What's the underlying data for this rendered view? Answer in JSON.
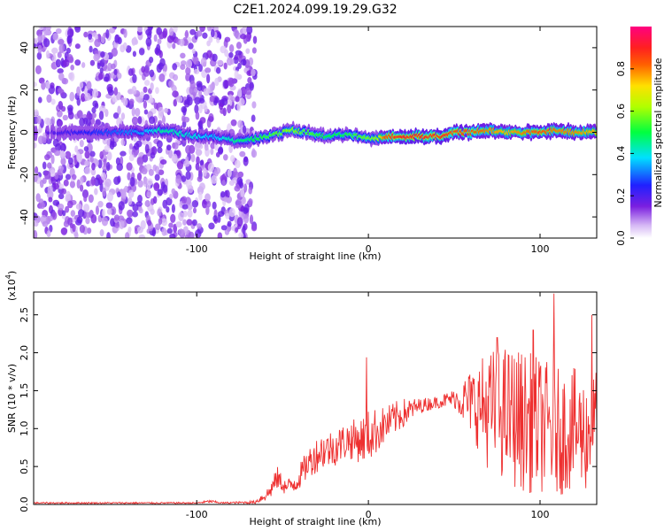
{
  "title": "C2E1.2024.099.19.29.G32",
  "colors": {
    "snr_line": "#ee3030",
    "axis": "#000000",
    "scatter_purple": "#7a1fe0"
  },
  "chart_data": [
    {
      "type": "heatmap",
      "name": "spectrogram",
      "xlabel": "Height of straight line (km)",
      "ylabel": "Frequency (Hz)",
      "xlim": [
        -195,
        133
      ],
      "ylim": [
        -50,
        50
      ],
      "xticks": [
        -100,
        0,
        100
      ],
      "xtick_labels": [
        "-100",
        "0",
        "100"
      ],
      "yticks": [
        -40,
        -20,
        0,
        20,
        40
      ],
      "ytick_labels": [
        "-40",
        "-20",
        "0",
        "20",
        "40"
      ],
      "colorbar": {
        "label": "Normalized spectral amplitude",
        "range": [
          0,
          1
        ],
        "ticks": [
          0.0,
          0.2,
          0.4,
          0.6,
          0.8
        ],
        "tick_labels": [
          "0.0",
          "0.2",
          "0.4",
          "0.6",
          "0.8"
        ],
        "colormap": "rainbow (white–purple–blue–cyan–green–yellow–red–magenta)"
      },
      "noise_region_x": [
        -195,
        -66
      ],
      "ridge": {
        "x": [
          -195,
          -130,
          -120,
          -100,
          -90,
          -78,
          -66,
          -55,
          -45,
          -35,
          -25,
          -15,
          -5,
          5,
          10,
          20,
          30,
          45,
          50,
          60,
          70,
          80,
          90,
          100,
          110,
          120,
          133
        ],
        "freq": [
          0,
          0,
          1,
          -2,
          -2,
          -4,
          -3,
          -1,
          1,
          0,
          -2,
          -1,
          -2,
          -3,
          -2,
          -2,
          -2,
          -2,
          0,
          0,
          1,
          0,
          0,
          0,
          1,
          0,
          0
        ],
        "amp": [
          0.15,
          0.35,
          0.45,
          0.4,
          0.35,
          0.45,
          0.5,
          0.55,
          0.6,
          0.55,
          0.5,
          0.5,
          0.55,
          0.6,
          0.85,
          0.9,
          0.9,
          0.88,
          0.85,
          0.85,
          0.8,
          0.75,
          0.8,
          0.85,
          0.8,
          0.8,
          0.75
        ]
      }
    },
    {
      "type": "line",
      "name": "snr",
      "xlabel": "Height of straight line (km)",
      "ylabel": "SNR (10 * v/v)",
      "ylabel_multiplier": "(x10",
      "ylabel_multiplier_exp": "4",
      "ylabel_multiplier_close": ")",
      "xlim": [
        -195,
        133
      ],
      "ylim": [
        0,
        2.8
      ],
      "xticks": [
        -100,
        0,
        100
      ],
      "xtick_labels": [
        "-100",
        "0",
        "100"
      ],
      "yticks": [
        0.0,
        0.5,
        1.0,
        1.5,
        2.0,
        2.5
      ],
      "ytick_labels": [
        "0.0",
        "0.5",
        "1.0",
        "1.5",
        "2.0",
        "2.5"
      ],
      "envelope": {
        "x": [
          -195,
          -100,
          -92,
          -85,
          -66,
          -58,
          -53,
          -48,
          -42,
          -35,
          -28,
          -20,
          -12,
          -5,
          0,
          10,
          20,
          30,
          40,
          50,
          60,
          70,
          80,
          90,
          100,
          110,
          120,
          128,
          133
        ],
        "mean": [
          0.02,
          0.02,
          0.04,
          0.02,
          0.03,
          0.15,
          0.35,
          0.22,
          0.3,
          0.55,
          0.7,
          0.75,
          0.85,
          0.85,
          0.9,
          1.05,
          1.2,
          1.3,
          1.35,
          1.4,
          1.35,
          1.25,
          1.2,
          1.1,
          1.05,
          0.95,
          1.0,
          0.9,
          1.3
        ],
        "spread": [
          0.01,
          0.01,
          0.02,
          0.01,
          0.02,
          0.1,
          0.15,
          0.1,
          0.15,
          0.2,
          0.25,
          0.25,
          0.25,
          0.3,
          0.35,
          0.25,
          0.2,
          0.1,
          0.08,
          0.12,
          0.45,
          0.8,
          0.9,
          0.95,
          0.9,
          0.85,
          0.8,
          0.75,
          0.5
        ]
      },
      "peaks": [
        {
          "x": -1,
          "y": 1.94
        },
        {
          "x": 75,
          "y": 2.2
        },
        {
          "x": 96,
          "y": 2.3
        },
        {
          "x": 108,
          "y": 2.78
        },
        {
          "x": 130,
          "y": 2.5
        }
      ]
    }
  ]
}
